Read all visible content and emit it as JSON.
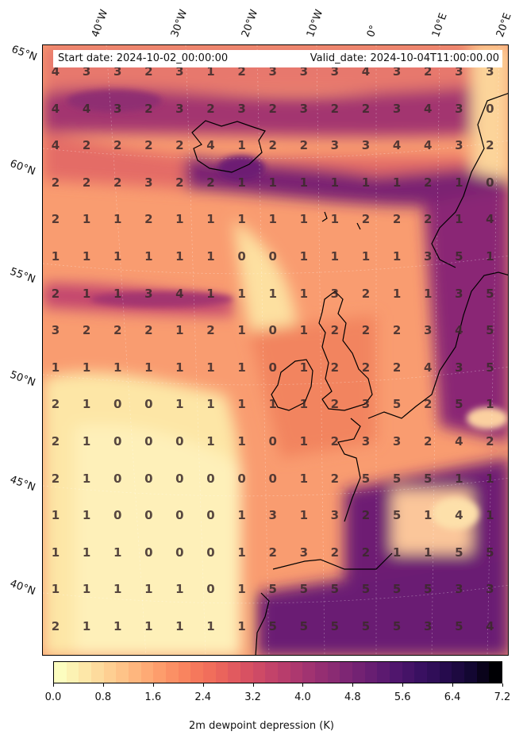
{
  "header": {
    "start_date": "Start date: 2024-10-02_00:00:00",
    "valid_date": "Valid_date: 2024-10-04T11:00:00.00"
  },
  "longitude_labels": [
    "40°W",
    "30°W",
    "20°W",
    "10°W",
    "0°",
    "10°E",
    "20°E"
  ],
  "latitude_labels": [
    "65°N",
    "60°N",
    "55°N",
    "50°N",
    "45°N",
    "40°N"
  ],
  "colorbar": {
    "title": "2m dewpoint depression (K)",
    "ticks": [
      "0.0",
      "0.8",
      "1.6",
      "2.4",
      "3.2",
      "4.0",
      "4.8",
      "5.6",
      "6.4",
      "7.2"
    ],
    "min": 0.0,
    "max": 7.2,
    "colormap": "magma_r"
  },
  "grid_values": [
    [
      "4",
      "3",
      "3",
      "2",
      "3",
      "1",
      "2",
      "3",
      "3",
      "3",
      "4",
      "3",
      "2",
      "3",
      "3"
    ],
    [
      "4",
      "4",
      "3",
      "2",
      "3",
      "2",
      "3",
      "2",
      "3",
      "2",
      "2",
      "3",
      "4",
      "3",
      "0"
    ],
    [
      "4",
      "2",
      "2",
      "2",
      "2",
      "4",
      "1",
      "2",
      "2",
      "3",
      "3",
      "4",
      "4",
      "3",
      "2"
    ],
    [
      "2",
      "2",
      "2",
      "3",
      "2",
      "2",
      "1",
      "1",
      "1",
      "1",
      "1",
      "1",
      "2",
      "1",
      "0"
    ],
    [
      "2",
      "1",
      "1",
      "2",
      "1",
      "1",
      "1",
      "1",
      "1",
      "1",
      "2",
      "2",
      "2",
      "1",
      "4"
    ],
    [
      "1",
      "1",
      "1",
      "1",
      "1",
      "1",
      "0",
      "0",
      "1",
      "1",
      "1",
      "1",
      "3",
      "5",
      "1"
    ],
    [
      "2",
      "1",
      "1",
      "3",
      "4",
      "1",
      "1",
      "1",
      "1",
      "3",
      "2",
      "1",
      "1",
      "3",
      "5"
    ],
    [
      "3",
      "2",
      "2",
      "2",
      "1",
      "2",
      "1",
      "0",
      "1",
      "2",
      "2",
      "2",
      "3",
      "4",
      "5"
    ],
    [
      "1",
      "1",
      "1",
      "1",
      "1",
      "1",
      "1",
      "0",
      "1",
      "2",
      "2",
      "2",
      "4",
      "3",
      "5"
    ],
    [
      "2",
      "1",
      "0",
      "0",
      "1",
      "1",
      "1",
      "1",
      "1",
      "2",
      "3",
      "5",
      "2",
      "5",
      "1"
    ],
    [
      "2",
      "1",
      "0",
      "0",
      "0",
      "1",
      "1",
      "0",
      "1",
      "2",
      "3",
      "3",
      "2",
      "4",
      "2"
    ],
    [
      "2",
      "1",
      "0",
      "0",
      "0",
      "0",
      "0",
      "0",
      "1",
      "2",
      "5",
      "5",
      "5",
      "1",
      "1"
    ],
    [
      "1",
      "1",
      "0",
      "0",
      "0",
      "0",
      "1",
      "3",
      "1",
      "3",
      "2",
      "5",
      "1",
      "4",
      "1"
    ],
    [
      "1",
      "1",
      "1",
      "0",
      "0",
      "0",
      "1",
      "2",
      "3",
      "2",
      "2",
      "1",
      "1",
      "5",
      "5"
    ],
    [
      "1",
      "1",
      "1",
      "1",
      "1",
      "0",
      "1",
      "5",
      "5",
      "5",
      "5",
      "5",
      "5",
      "3",
      "3"
    ],
    [
      "2",
      "1",
      "1",
      "1",
      "1",
      "1",
      "1",
      "5",
      "5",
      "5",
      "5",
      "5",
      "3",
      "5",
      "4"
    ]
  ]
}
